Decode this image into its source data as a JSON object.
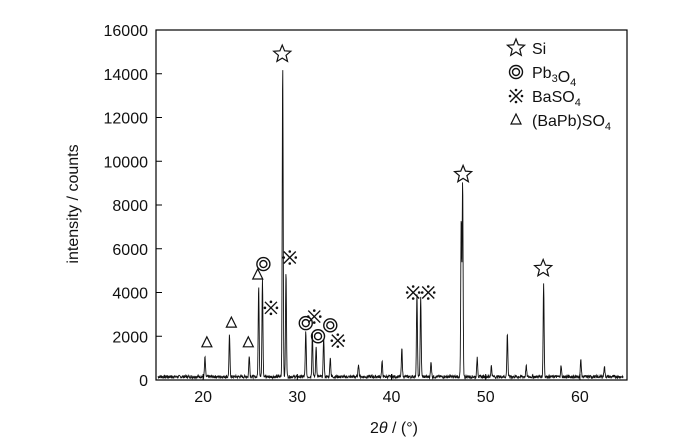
{
  "chart_data": {
    "type": "line",
    "xlabel": "2θ / (°)",
    "ylabel": "intensity / counts",
    "xlim": [
      15,
      65
    ],
    "ylim": [
      0,
      16000
    ],
    "x_ticks": [
      20,
      30,
      40,
      50,
      60
    ],
    "y_ticks": [
      0,
      2000,
      4000,
      6000,
      8000,
      10000,
      12000,
      14000,
      16000
    ],
    "grid": false,
    "legend_position": "top-right",
    "legend": [
      {
        "symbol": "star",
        "label": "Si"
      },
      {
        "symbol": "double-circle",
        "label": "Pb3O4"
      },
      {
        "symbol": "asterism",
        "label": "BaSO4"
      },
      {
        "symbol": "triangle",
        "label": "(BaPb)SO4"
      }
    ],
    "series": [
      {
        "peaks": [
          {
            "x": 20.2,
            "y": 900
          },
          {
            "x": 22.8,
            "y": 1900
          },
          {
            "x": 24.9,
            "y": 1000
          },
          {
            "x": 25.9,
            "y": 4200
          },
          {
            "x": 26.3,
            "y": 4500
          },
          {
            "x": 28.45,
            "y": 14300
          },
          {
            "x": 28.8,
            "y": 4800
          },
          {
            "x": 30.9,
            "y": 2100
          },
          {
            "x": 31.6,
            "y": 2000
          },
          {
            "x": 32.0,
            "y": 1400
          },
          {
            "x": 32.8,
            "y": 1800
          },
          {
            "x": 33.5,
            "y": 900
          },
          {
            "x": 36.5,
            "y": 600
          },
          {
            "x": 39.0,
            "y": 700
          },
          {
            "x": 41.1,
            "y": 1300
          },
          {
            "x": 42.7,
            "y": 3800
          },
          {
            "x": 43.1,
            "y": 3700
          },
          {
            "x": 44.2,
            "y": 700
          },
          {
            "x": 47.4,
            "y": 7200
          },
          {
            "x": 47.55,
            "y": 8900
          },
          {
            "x": 49.1,
            "y": 900
          },
          {
            "x": 50.6,
            "y": 500
          },
          {
            "x": 52.3,
            "y": 2000
          },
          {
            "x": 54.3,
            "y": 500
          },
          {
            "x": 56.15,
            "y": 4300
          },
          {
            "x": 58.0,
            "y": 500
          },
          {
            "x": 60.1,
            "y": 800
          },
          {
            "x": 62.6,
            "y": 500
          }
        ]
      }
    ],
    "annotations": [
      {
        "symbol": "star",
        "x": 28.4,
        "y": 14900
      },
      {
        "symbol": "star",
        "x": 47.6,
        "y": 9400
      },
      {
        "symbol": "star",
        "x": 56.1,
        "y": 5100
      },
      {
        "symbol": "double-circle",
        "x": 26.4,
        "y": 5300
      },
      {
        "symbol": "double-circle",
        "x": 30.9,
        "y": 2600
      },
      {
        "symbol": "double-circle",
        "x": 32.2,
        "y": 2000
      },
      {
        "symbol": "double-circle",
        "x": 33.5,
        "y": 2500
      },
      {
        "symbol": "asterism",
        "x": 29.2,
        "y": 5600
      },
      {
        "symbol": "asterism",
        "x": 27.2,
        "y": 3300
      },
      {
        "symbol": "asterism",
        "x": 31.8,
        "y": 2900
      },
      {
        "symbol": "asterism",
        "x": 34.3,
        "y": 1800
      },
      {
        "symbol": "asterism",
        "x": 42.3,
        "y": 4000
      },
      {
        "symbol": "asterism",
        "x": 43.9,
        "y": 4000
      },
      {
        "symbol": "triangle",
        "x": 20.4,
        "y": 1700
      },
      {
        "symbol": "triangle",
        "x": 23.0,
        "y": 2600
      },
      {
        "symbol": "triangle",
        "x": 24.8,
        "y": 1700
      },
      {
        "symbol": "triangle",
        "x": 25.8,
        "y": 4800
      }
    ]
  }
}
